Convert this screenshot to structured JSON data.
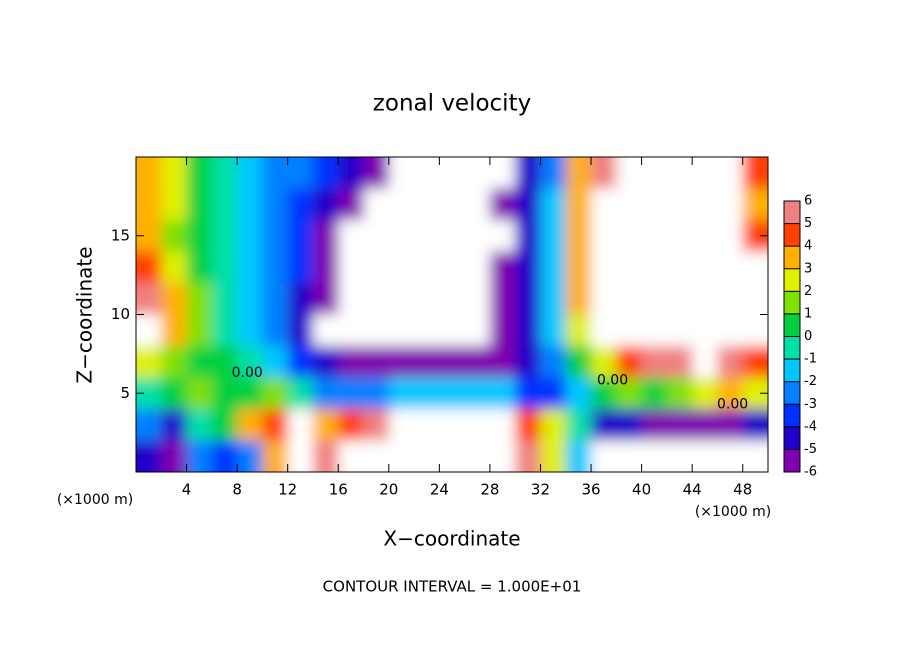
{
  "chart_data": {
    "type": "contour",
    "title": "zonal velocity",
    "x_label": "X−coordinate",
    "y_label": "Z−coordinate",
    "x_unit": "(×1000 m)",
    "y_unit": "(×1000 m)",
    "annotation": "CONTOUR INTERVAL = 1.000E+01",
    "xlim": [
      0,
      50
    ],
    "ylim": [
      0,
      20
    ],
    "xticks": [
      4,
      8,
      12,
      16,
      20,
      24,
      28,
      32,
      36,
      40,
      44,
      48
    ],
    "yticks": [
      5,
      10,
      15
    ],
    "x": [
      1,
      3,
      5,
      7,
      9,
      11,
      13,
      15,
      17,
      19,
      21,
      23,
      25,
      27,
      29,
      31,
      33,
      35,
      37,
      39,
      41,
      43,
      45,
      47,
      49
    ],
    "y": [
      19,
      17,
      15,
      13,
      11,
      9,
      7,
      5,
      3,
      1
    ],
    "z": [
      [
        4,
        3,
        1,
        0,
        -1,
        -2,
        -2,
        -3,
        -4,
        -6,
        -8,
        -8,
        -7,
        -8,
        -8,
        -4,
        -2,
        4,
        6,
        8,
        8,
        8,
        8,
        8,
        5
      ],
      [
        4,
        3,
        1,
        0,
        -1,
        -2,
        -3,
        -4,
        -6,
        -8,
        -8,
        -8,
        -8,
        -8,
        -6,
        -4,
        -1,
        4,
        7,
        8,
        8,
        8,
        8,
        8,
        4
      ],
      [
        4,
        2,
        1,
        0,
        -1,
        -2,
        -3,
        -5,
        -8,
        -8,
        -8,
        -8,
        -8,
        -8,
        -7,
        -4,
        -1,
        4,
        7,
        8,
        8,
        8,
        8,
        7,
        5
      ],
      [
        5,
        3,
        1,
        0,
        -1,
        -2,
        -3,
        -5,
        -8,
        -8,
        -8,
        -8,
        -8,
        -8,
        -6,
        -4,
        -1,
        4,
        7,
        8,
        8,
        8,
        8,
        8,
        8
      ],
      [
        6,
        4,
        2,
        0,
        -1,
        -2,
        -4,
        -6,
        -8,
        -8,
        -8,
        -8,
        -8,
        -8,
        -6,
        -4,
        -1,
        4,
        7,
        8,
        8,
        8,
        8,
        8,
        8
      ],
      [
        7,
        4,
        2,
        0,
        -1,
        -2,
        -4,
        -7,
        -8,
        -8,
        -8,
        -8,
        -8,
        -8,
        -6,
        -4,
        -1,
        3,
        7,
        8,
        8,
        8,
        8,
        8,
        8
      ],
      [
        3,
        2,
        1,
        1,
        0,
        -1,
        -3,
        -4,
        -5,
        -6,
        -6,
        -6,
        -6,
        -6,
        -5,
        -4,
        -2,
        1,
        3,
        5,
        6,
        6,
        7,
        6,
        5
      ],
      [
        0,
        1,
        2,
        1,
        1,
        2,
        0,
        -2,
        -2,
        -2,
        -1,
        -1,
        -1,
        -1,
        -1,
        -3,
        -3,
        -1,
        1,
        2,
        1,
        2,
        3,
        4,
        3
      ],
      [
        -2,
        -4,
        0,
        1,
        4,
        5,
        7,
        4,
        5,
        6,
        7,
        7,
        7,
        7,
        7,
        5,
        3,
        0,
        -4,
        -4,
        -5,
        -5,
        -5,
        -5,
        -4
      ],
      [
        -4,
        -5,
        -2,
        -3,
        -2,
        4,
        7,
        6,
        7,
        8,
        8,
        8,
        8,
        8,
        8,
        6,
        3,
        -1,
        -7,
        -7,
        -7,
        -8,
        -8,
        -8,
        -8
      ]
    ],
    "levels": [
      -6,
      -5,
      -4,
      -3,
      -2,
      -1,
      0,
      1,
      2,
      3,
      4,
      5,
      6
    ],
    "colors": [
      "#7f00b0",
      "#2000c8",
      "#0030ff",
      "#0080ff",
      "#00c8ff",
      "#00e0a8",
      "#00d040",
      "#80e000",
      "#e0f000",
      "#ffb000",
      "#ff4000",
      "#f08080"
    ],
    "contour_labels": [
      {
        "label": "0.00",
        "x": 8.8,
        "z": 6.3
      },
      {
        "label": "0.00",
        "x": 37.7,
        "z": 5.8
      },
      {
        "label": "0.00",
        "x": 47.2,
        "z": 4.3
      }
    ]
  }
}
